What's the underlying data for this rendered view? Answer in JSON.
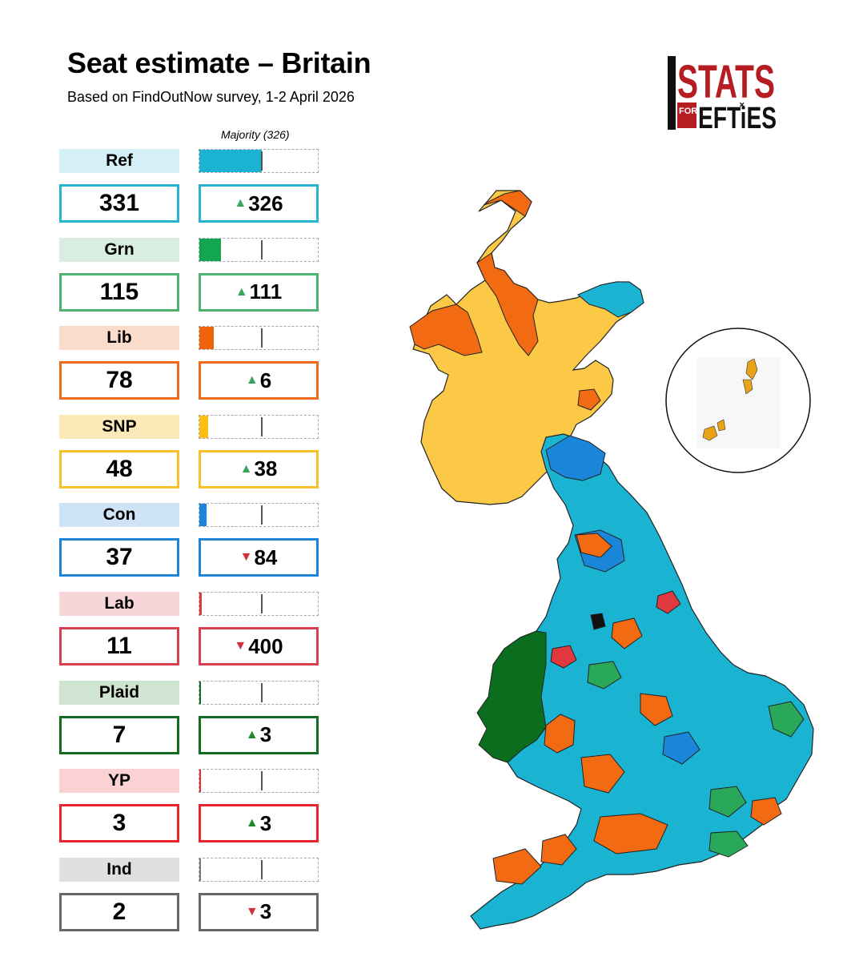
{
  "header": {
    "title": "Seat estimate – Britain",
    "subtitle": "Based on FindOutNow survey, 1-2 April 2026"
  },
  "logo": {
    "text": "STATS FOR LEFTIES"
  },
  "majority_label": "Majority (326)",
  "majority_seats": 326,
  "colors": {
    "up_arrow": "#3aa55d",
    "down_arrow": "#d2303f",
    "ref": "#1ab3d1",
    "grn": "#2aa85a",
    "lib": "#f26a12",
    "snp": "#fcc633",
    "con": "#1a86d9",
    "lab": "#e0383f",
    "plaid": "#0b6e1e",
    "yp": "#f0282e",
    "ind": "#777777",
    "scotland_snp": "#fbc946",
    "wales_plaid": "#0b6e1e",
    "sea": "#ffffff"
  },
  "parties": [
    {
      "name": "Ref",
      "seats": "331",
      "change": "326",
      "direction": "up",
      "seat_value": 331,
      "tag_bg": "#d4eff6",
      "border": "#26b4cf",
      "fill": "#1ab3d1",
      "arrow_color": "#3aa55d"
    },
    {
      "name": "Grn",
      "seats": "115",
      "change": "111",
      "direction": "up",
      "seat_value": 115,
      "tag_bg": "#d8eee0",
      "border": "#4fb370",
      "fill": "#12a650",
      "arrow_color": "#3aa55d"
    },
    {
      "name": "Lib",
      "seats": "78",
      "change": "6",
      "direction": "up",
      "seat_value": 78,
      "tag_bg": "#fbdccb",
      "border": "#f06b1c",
      "fill": "#f0620b",
      "arrow_color": "#3aa55d"
    },
    {
      "name": "SNP",
      "seats": "48",
      "change": "38",
      "direction": "up",
      "seat_value": 48,
      "tag_bg": "#fbeab8",
      "border": "#f6c12b",
      "fill": "#fbbf13",
      "arrow_color": "#3aa55d"
    },
    {
      "name": "Con",
      "seats": "37",
      "change": "84",
      "direction": "down",
      "seat_value": 37,
      "tag_bg": "#cfe3f6",
      "border": "#1f84d6",
      "fill": "#1b84dd",
      "arrow_color": "#d2303f"
    },
    {
      "name": "Lab",
      "seats": "11",
      "change": "400",
      "direction": "down",
      "seat_value": 11,
      "tag_bg": "#f8d5d9",
      "border": "#d8404f",
      "fill": "#e0383f",
      "arrow_color": "#d2303f"
    },
    {
      "name": "Plaid",
      "seats": "7",
      "change": "3",
      "direction": "up",
      "seat_value": 7,
      "tag_bg": "#d0e4d2",
      "border": "#126b21",
      "fill": "#0b6e1e",
      "arrow_color": "#1f8a2a"
    },
    {
      "name": "YP",
      "seats": "3",
      "change": "3",
      "direction": "up",
      "seat_value": 3,
      "tag_bg": "#fbd2d3",
      "border": "#e8232a",
      "fill": "#f0282e",
      "arrow_color": "#1f8a2a"
    },
    {
      "name": "Ind",
      "seats": "2",
      "change": "3",
      "direction": "down",
      "seat_value": 2,
      "tag_bg": "#e0e0e0",
      "border": "#686868",
      "fill": "#777777",
      "arrow_color": "#d2303f"
    }
  ]
}
